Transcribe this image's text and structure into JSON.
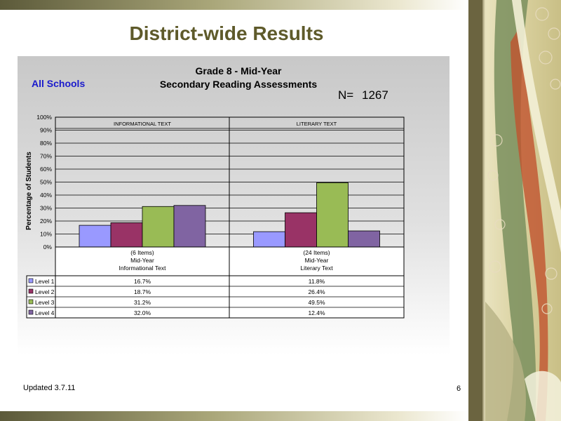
{
  "slide": {
    "title": "District-wide Results",
    "footer": "Updated  3.7.11",
    "page_number": "6"
  },
  "chart_data": {
    "type": "bar",
    "title": "Grade 8 - Mid-Year",
    "subtitle": "Secondary Reading Assessments",
    "scope_label": "All Schools",
    "n_label": "N=",
    "n_value": "1267",
    "ylabel": "Percentage of Students",
    "ylim": [
      0,
      100
    ],
    "yticks": [
      "0%",
      "10%",
      "20%",
      "30%",
      "40%",
      "50%",
      "60%",
      "70%",
      "80%",
      "90%",
      "100%"
    ],
    "grid": true,
    "panel_headers": [
      "INFORMATIONAL TEXT",
      "LITERARY TEXT"
    ],
    "categories": [
      [
        "(6 Items)",
        "Mid-Year",
        "Informational Text"
      ],
      [
        "(24 Items)",
        "Mid-Year",
        "Literary Text"
      ]
    ],
    "series": [
      {
        "name": "Level 1",
        "color": "#9999ff",
        "values": [
          16.7,
          11.8
        ],
        "labels": [
          "16.7%",
          "11.8%"
        ]
      },
      {
        "name": "Level 2",
        "color": "#993366",
        "values": [
          18.7,
          26.4
        ],
        "labels": [
          "18.7%",
          "26.4%"
        ]
      },
      {
        "name": "Level 3",
        "color": "#99bb55",
        "values": [
          31.2,
          49.5
        ],
        "labels": [
          "31.2%",
          "49.5%"
        ]
      },
      {
        "name": "Level 4",
        "color": "#8064a2",
        "values": [
          32.0,
          12.4
        ],
        "labels": [
          "32.0%",
          "12.4%"
        ]
      }
    ]
  }
}
